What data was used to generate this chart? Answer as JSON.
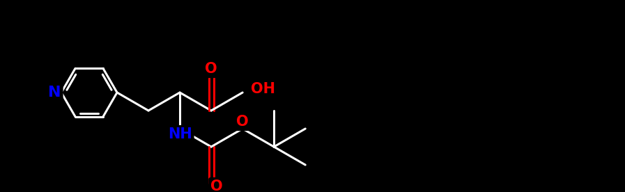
{
  "background_color": "#000000",
  "bond_color": "#ffffff",
  "N_color": "#0000ff",
  "O_color": "#ff0000",
  "font_size": 13,
  "bond_width": 2.2,
  "fig_width": 8.97,
  "fig_height": 2.76,
  "dpi": 100,
  "xlim": [
    0,
    897
  ],
  "ylim": [
    0,
    276
  ]
}
